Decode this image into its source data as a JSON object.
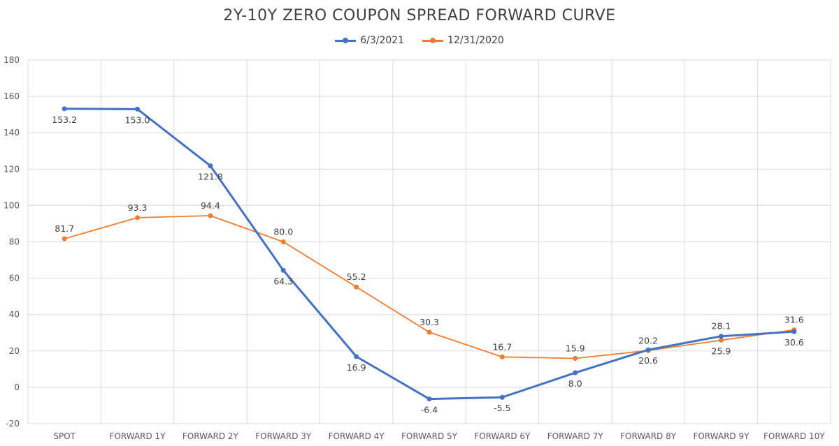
{
  "chart_data": {
    "type": "line",
    "title": "2Y-10Y ZERO COUPON SPREAD FORWARD CURVE",
    "categories": [
      "SPOT",
      "FORWARD 1Y",
      "FORWARD 2Y",
      "FORWARD 3Y",
      "FORWARD 4Y",
      "FORWARD 5Y",
      "FORWARD 6Y",
      "FORWARD 7Y",
      "FORWARD 8Y",
      "FORWARD 9Y",
      "FORWARD 10Y"
    ],
    "series": [
      {
        "name": "6/3/2021",
        "color": "#4472C4",
        "values": [
          153.2,
          153.0,
          121.8,
          64.3,
          16.9,
          -6.4,
          -5.5,
          8.0,
          20.6,
          28.1,
          30.6
        ],
        "labels": [
          "153.2",
          "153.0",
          "121.8",
          "64.3",
          "16.9",
          "-6.4",
          "-5.5",
          "8.0",
          "20.6",
          "28.1",
          "30.6"
        ]
      },
      {
        "name": "12/31/2020",
        "color": "#ED7D31",
        "values": [
          81.7,
          93.3,
          94.4,
          80.0,
          55.2,
          30.3,
          16.7,
          15.9,
          20.2,
          25.9,
          31.6
        ],
        "labels": [
          "81.7",
          "93.3",
          "94.4",
          "80.0",
          "55.2",
          "30.3",
          "16.7",
          "15.9",
          "20.2",
          "25.9",
          "31.6"
        ]
      }
    ],
    "ylim": [
      -20,
      180
    ],
    "yticks": [
      "-20",
      "0",
      "20",
      "40",
      "60",
      "80",
      "100",
      "120",
      "140",
      "160",
      "180"
    ],
    "xlabel": "",
    "ylabel": "",
    "grid": true,
    "legend_position": "top-center"
  }
}
